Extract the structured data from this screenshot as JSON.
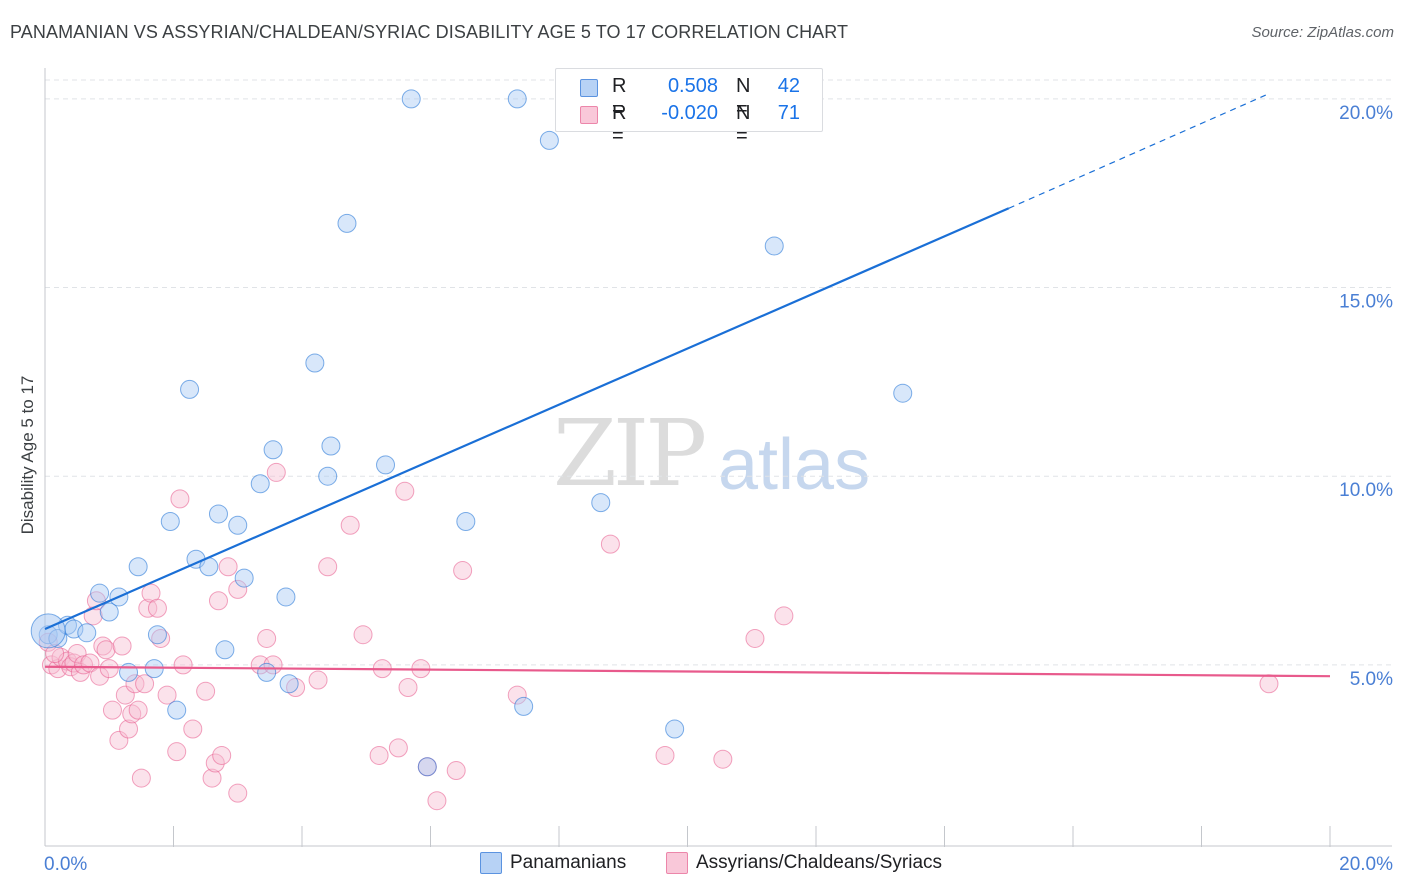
{
  "title": "PANAMANIAN VS ASSYRIAN/CHALDEAN/SYRIAC DISABILITY AGE 5 TO 17 CORRELATION CHART",
  "source": "Source: ZipAtlas.com",
  "watermark": {
    "zip": "ZIP",
    "atlas": "atlas"
  },
  "colors": {
    "blue": "#1a6fd6",
    "blue_fill": "#a9c9f3",
    "pink": "#e85a8c",
    "pink_fill": "#f7bfd3",
    "grid": "#e0e3e7",
    "tick_label": "#4a7fd4"
  },
  "legend": {
    "series1": {
      "r_label": "R =",
      "r_value": "0.508",
      "n_label": "N =",
      "n_value": "42"
    },
    "series2": {
      "r_label": "R =",
      "r_value": "-0.020",
      "n_label": "N =",
      "n_value": "71"
    }
  },
  "bottom_legend": {
    "series1": "Panamanians",
    "series2": "Assyrians/Chaldeans/Syriacs"
  },
  "chart_data": {
    "type": "scatter",
    "title": "PANAMANIAN VS ASSYRIAN/CHALDEAN/SYRIAC DISABILITY AGE 5 TO 17 CORRELATION CHART",
    "xlabel": "",
    "ylabel": "Disability Age 5 to 17",
    "xlim": [
      0,
      20
    ],
    "ylim": [
      0.2,
      20.5
    ],
    "x_tick_labels": [
      "0.0%",
      "20.0%"
    ],
    "y_ticks": [
      5,
      10,
      15,
      20
    ],
    "y_tick_labels": [
      "5.0%",
      "10.0%",
      "15.0%",
      "20.0%"
    ],
    "series": [
      {
        "name": "Panamanians",
        "color": "#1a6fd6",
        "trend": {
          "x0": 0,
          "y0": 5.95,
          "x1": 15,
          "y1": 17.1,
          "x_dash_end": 19.0,
          "y_dash_end": 20.1
        },
        "points": [
          [
            0.05,
            5.8
          ],
          [
            0.2,
            5.7
          ],
          [
            0.35,
            6.05
          ],
          [
            0.45,
            5.95
          ],
          [
            0.65,
            5.85
          ],
          [
            0.85,
            6.9
          ],
          [
            1.0,
            6.4
          ],
          [
            1.15,
            6.8
          ],
          [
            1.45,
            7.6
          ],
          [
            1.3,
            4.8
          ],
          [
            1.7,
            4.9
          ],
          [
            1.75,
            5.8
          ],
          [
            1.95,
            8.8
          ],
          [
            2.05,
            3.8
          ],
          [
            2.25,
            12.3
          ],
          [
            2.35,
            7.8
          ],
          [
            2.55,
            7.6
          ],
          [
            2.7,
            9.0
          ],
          [
            2.8,
            5.4
          ],
          [
            3.0,
            8.7
          ],
          [
            3.1,
            7.3
          ],
          [
            3.35,
            9.8
          ],
          [
            3.45,
            4.8
          ],
          [
            3.55,
            10.7
          ],
          [
            3.75,
            6.8
          ],
          [
            3.8,
            4.5
          ],
          [
            4.2,
            13.0
          ],
          [
            4.4,
            10.0
          ],
          [
            4.45,
            10.8
          ],
          [
            4.7,
            16.7
          ],
          [
            5.3,
            10.3
          ],
          [
            5.95,
            2.3
          ],
          [
            5.7,
            20.0
          ],
          [
            6.55,
            8.8
          ],
          [
            7.35,
            20.0
          ],
          [
            7.45,
            3.9
          ],
          [
            7.85,
            18.9
          ],
          [
            8.65,
            9.3
          ],
          [
            9.8,
            3.3
          ],
          [
            11.35,
            16.1
          ],
          [
            13.35,
            12.2
          ],
          [
            0.05,
            5.9
          ]
        ]
      },
      {
        "name": "Assyrians/Chaldeans/Syriacs",
        "color": "#e85a8c",
        "trend": {
          "x0": 0,
          "y0": 4.95,
          "x1": 20,
          "y1": 4.7
        },
        "points": [
          [
            0.05,
            5.6
          ],
          [
            0.1,
            5.0
          ],
          [
            0.2,
            4.9
          ],
          [
            0.25,
            5.2
          ],
          [
            0.35,
            5.1
          ],
          [
            0.4,
            4.95
          ],
          [
            0.45,
            5.05
          ],
          [
            0.5,
            5.3
          ],
          [
            0.55,
            4.8
          ],
          [
            0.6,
            5.0
          ],
          [
            0.7,
            5.05
          ],
          [
            0.75,
            6.3
          ],
          [
            0.8,
            6.7
          ],
          [
            0.85,
            4.7
          ],
          [
            0.9,
            5.5
          ],
          [
            0.95,
            5.4
          ],
          [
            1.0,
            4.9
          ],
          [
            1.05,
            3.8
          ],
          [
            1.15,
            3.0
          ],
          [
            1.2,
            5.5
          ],
          [
            1.25,
            4.2
          ],
          [
            1.3,
            3.3
          ],
          [
            1.35,
            3.7
          ],
          [
            1.4,
            4.5
          ],
          [
            1.45,
            3.8
          ],
          [
            1.5,
            2.0
          ],
          [
            1.55,
            4.5
          ],
          [
            1.6,
            6.5
          ],
          [
            1.65,
            6.9
          ],
          [
            1.75,
            6.5
          ],
          [
            1.8,
            5.7
          ],
          [
            1.9,
            4.2
          ],
          [
            2.05,
            2.7
          ],
          [
            2.1,
            9.4
          ],
          [
            2.15,
            5.0
          ],
          [
            2.3,
            3.3
          ],
          [
            2.5,
            4.3
          ],
          [
            2.6,
            2.0
          ],
          [
            2.65,
            2.4
          ],
          [
            2.7,
            6.7
          ],
          [
            2.75,
            2.6
          ],
          [
            2.85,
            7.6
          ],
          [
            3.0,
            7.0
          ],
          [
            3.0,
            1.6
          ],
          [
            3.35,
            5.0
          ],
          [
            3.45,
            5.7
          ],
          [
            3.55,
            5.0
          ],
          [
            3.6,
            10.1
          ],
          [
            3.9,
            4.4
          ],
          [
            4.25,
            4.6
          ],
          [
            4.4,
            7.6
          ],
          [
            4.75,
            8.7
          ],
          [
            4.95,
            5.8
          ],
          [
            5.25,
            4.9
          ],
          [
            5.2,
            2.6
          ],
          [
            5.5,
            2.8
          ],
          [
            5.6,
            9.6
          ],
          [
            5.65,
            4.4
          ],
          [
            5.85,
            4.9
          ],
          [
            5.95,
            2.3
          ],
          [
            6.1,
            1.4
          ],
          [
            6.4,
            2.2
          ],
          [
            6.5,
            7.5
          ],
          [
            7.35,
            4.2
          ],
          [
            8.8,
            8.2
          ],
          [
            9.65,
            2.6
          ],
          [
            10.55,
            2.5
          ],
          [
            11.05,
            5.7
          ],
          [
            11.5,
            6.3
          ],
          [
            19.05,
            4.5
          ],
          [
            0.15,
            5.3
          ]
        ]
      }
    ]
  }
}
